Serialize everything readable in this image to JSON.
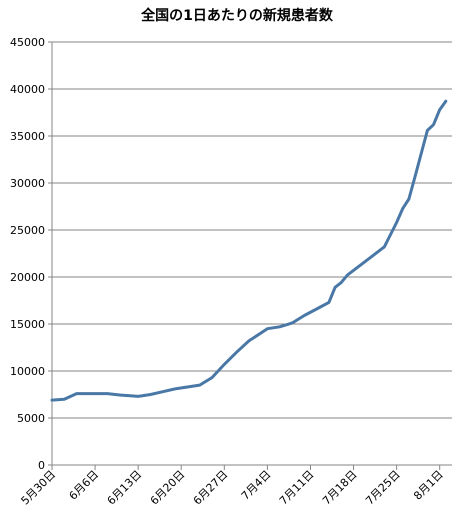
{
  "chart_data": {
    "type": "line",
    "title": "全国の1日あたりの新規患者数",
    "xlabel": "",
    "ylabel": "",
    "ylim": [
      0,
      45000
    ],
    "yticks": [
      0,
      5000,
      10000,
      15000,
      20000,
      25000,
      30000,
      35000,
      40000,
      45000
    ],
    "ytick_labels": [
      "0",
      "5000",
      "10000",
      "15000",
      "20000",
      "25000",
      "30000",
      "35000",
      "40000",
      "45000"
    ],
    "xlim": [
      "2021-05-30",
      "2021-08-03"
    ],
    "xtick_labels": [
      "5月30日",
      "6月6日",
      "6月13日",
      "6月20日",
      "6月27日",
      "7月4日",
      "7月11日",
      "7月18日",
      "7月25日",
      "8月1日"
    ],
    "xticks": [
      "2021-05-30",
      "2021-06-06",
      "2021-06-13",
      "2021-06-20",
      "2021-06-27",
      "2021-07-04",
      "2021-07-11",
      "2021-07-18",
      "2021-07-25",
      "2021-08-01"
    ],
    "grid": "horizontal",
    "line_color": "#4a78a6",
    "series": [
      {
        "name": "",
        "x": [
          "2021-05-30",
          "2021-06-01",
          "2021-06-03",
          "2021-06-05",
          "2021-06-08",
          "2021-06-10",
          "2021-06-13",
          "2021-06-15",
          "2021-06-17",
          "2021-06-19",
          "2021-06-21",
          "2021-06-23",
          "2021-06-25",
          "2021-06-27",
          "2021-06-29",
          "2021-07-01",
          "2021-07-04",
          "2021-07-06",
          "2021-07-08",
          "2021-07-10",
          "2021-07-12",
          "2021-07-14",
          "2021-07-15",
          "2021-07-16",
          "2021-07-17",
          "2021-07-19",
          "2021-07-21",
          "2021-07-23",
          "2021-07-25",
          "2021-07-26",
          "2021-07-27",
          "2021-07-28",
          "2021-07-30",
          "2021-07-31",
          "2021-08-01",
          "2021-08-02"
        ],
        "y": [
          6900,
          7000,
          7600,
          7600,
          7600,
          7450,
          7300,
          7500,
          7800,
          8100,
          8300,
          8500,
          9300,
          10700,
          12000,
          13200,
          14500,
          14700,
          15100,
          15900,
          16600,
          17300,
          18900,
          19400,
          20200,
          21200,
          22200,
          23200,
          25800,
          27300,
          28300,
          30700,
          35600,
          36200,
          37800,
          38700
        ]
      }
    ]
  }
}
